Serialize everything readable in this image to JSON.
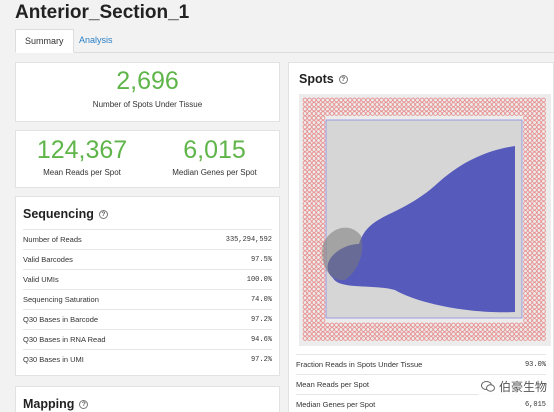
{
  "page": {
    "title": "Anterior_Section_1"
  },
  "tabs": [
    {
      "label": "Summary"
    },
    {
      "label": "Analysis"
    }
  ],
  "spots_under_tissue": {
    "value": "2,696",
    "label": "Number of Spots Under Tissue"
  },
  "reads": {
    "mean_reads": {
      "value": "124,367",
      "label": "Mean Reads per Spot"
    },
    "median_genes": {
      "value": "6,015",
      "label": "Median Genes per Spot"
    }
  },
  "sequencing": {
    "title": "Sequencing",
    "rows": [
      {
        "label": "Number of Reads",
        "value": "335,294,592"
      },
      {
        "label": "Valid Barcodes",
        "value": "97.5%"
      },
      {
        "label": "Valid UMIs",
        "value": "100.0%"
      },
      {
        "label": "Sequencing Saturation",
        "value": "74.0%"
      },
      {
        "label": "Q30 Bases in Barcode",
        "value": "97.2%"
      },
      {
        "label": "Q30 Bases in RNA Read",
        "value": "94.6%"
      },
      {
        "label": "Q30 Bases in UMI",
        "value": "97.2%"
      }
    ]
  },
  "mapping": {
    "title": "Mapping"
  },
  "spots": {
    "title": "Spots",
    "rows": [
      {
        "label": "Fraction Reads in Spots Under Tissue",
        "value": "93.0%"
      },
      {
        "label": "Mean Reads per Spot",
        "value": ""
      },
      {
        "label": "Median Genes per Spot",
        "value": "6,015"
      }
    ],
    "colors": {
      "outer_ring": "#e88c8c",
      "tissue_spots": "#4a4fb8",
      "background": "#d8d8d8"
    }
  },
  "watermark": {
    "text": "伯豪生物"
  },
  "colors": {
    "accent_green": "#5fb54a",
    "tab_link": "#2a7fc4"
  }
}
